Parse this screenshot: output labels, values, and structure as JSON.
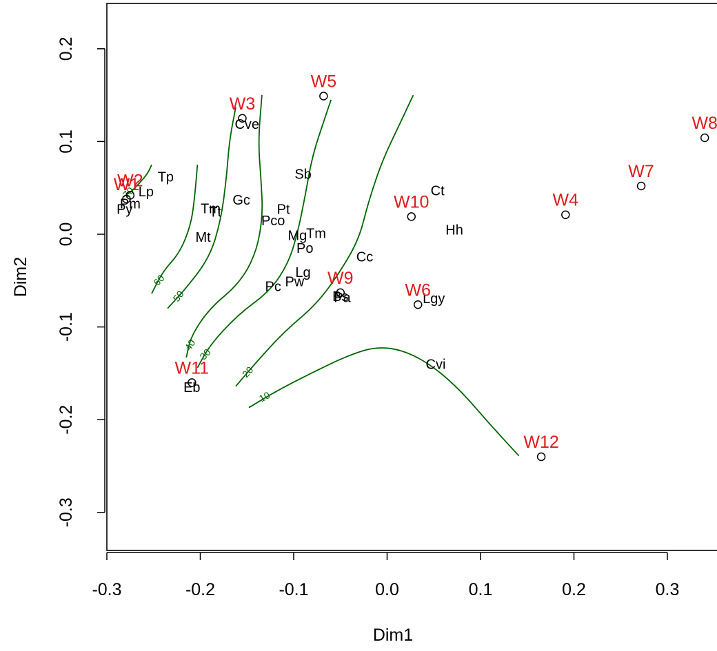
{
  "chart_data": {
    "type": "scatter",
    "title": "",
    "xlabel": "Dim1",
    "ylabel": "Dim2",
    "xlim": [
      -0.3,
      0.37
    ],
    "ylim": [
      -0.34,
      0.25
    ],
    "xticks": [
      "-0.3",
      "-0.2",
      "-0.1",
      "0.0",
      "0.1",
      "0.2",
      "0.3"
    ],
    "xtick_values": [
      -0.3,
      -0.2,
      -0.1,
      0.0,
      0.1,
      0.2,
      0.3
    ],
    "yticks": [
      "-0.3",
      "-0.2",
      "-0.1",
      "0.0",
      "0.1",
      "0.2"
    ],
    "ytick_values": [
      -0.3,
      -0.2,
      -0.1,
      0.0,
      0.1,
      0.2
    ],
    "grid": false,
    "colors": {
      "site": "#dd1c1c",
      "species": "#000000",
      "contour": "#006400",
      "axis": "#000000"
    },
    "sites": [
      {
        "label": "W1",
        "x": -0.279,
        "y": 0.038
      },
      {
        "label": "W2",
        "x": -0.275,
        "y": 0.042
      },
      {
        "label": "W3",
        "x": -0.155,
        "y": 0.125
      },
      {
        "label": "W4",
        "x": 0.191,
        "y": 0.021
      },
      {
        "label": "W5",
        "x": -0.068,
        "y": 0.149
      },
      {
        "label": "W6",
        "x": 0.033,
        "y": -0.076
      },
      {
        "label": "W7",
        "x": 0.272,
        "y": 0.052
      },
      {
        "label": "W8",
        "x": 0.34,
        "y": 0.104
      },
      {
        "label": "W9",
        "x": -0.05,
        "y": -0.063
      },
      {
        "label": "W10",
        "x": 0.026,
        "y": 0.019
      },
      {
        "label": "W11",
        "x": -0.209,
        "y": -0.16
      },
      {
        "label": "W12",
        "x": 0.165,
        "y": -0.24
      }
    ],
    "species": [
      {
        "label": "Tp",
        "x": -0.237,
        "y": 0.062
      },
      {
        "label": "Lp",
        "x": -0.258,
        "y": 0.046
      },
      {
        "label": "Pm",
        "x": -0.275,
        "y": 0.033
      },
      {
        "label": "Py",
        "x": -0.281,
        "y": 0.027
      },
      {
        "label": "Tm",
        "x": -0.189,
        "y": 0.028
      },
      {
        "label": "Tt",
        "x": -0.184,
        "y": 0.024
      },
      {
        "label": "Mt",
        "x": -0.197,
        "y": -0.003
      },
      {
        "label": "Gc",
        "x": -0.156,
        "y": 0.037
      },
      {
        "label": "Cve",
        "x": -0.15,
        "y": 0.119
      },
      {
        "label": "Sb",
        "x": -0.09,
        "y": 0.065
      },
      {
        "label": "Pt",
        "x": -0.111,
        "y": 0.027
      },
      {
        "label": "Pco",
        "x": -0.122,
        "y": 0.015
      },
      {
        "label": "Mg",
        "x": -0.096,
        "y": -0.001
      },
      {
        "label": "Tm",
        "x": -0.076,
        "y": 0.001
      },
      {
        "label": "Po",
        "x": -0.088,
        "y": -0.015
      },
      {
        "label": "Cc",
        "x": -0.024,
        "y": -0.024
      },
      {
        "label": "Lg",
        "x": -0.09,
        "y": -0.041
      },
      {
        "label": "Pw",
        "x": -0.099,
        "y": -0.051
      },
      {
        "label": "Pc",
        "x": -0.122,
        "y": -0.056
      },
      {
        "label": "Bs",
        "x": -0.05,
        "y": -0.067
      },
      {
        "label": "Pa",
        "x": -0.048,
        "y": -0.068
      },
      {
        "label": "Ct",
        "x": 0.054,
        "y": 0.047
      },
      {
        "label": "Hh",
        "x": 0.072,
        "y": 0.005
      },
      {
        "label": "Lgy",
        "x": 0.05,
        "y": -0.069
      },
      {
        "label": "Cvi",
        "x": 0.052,
        "y": -0.14
      },
      {
        "label": "Eb",
        "x": -0.209,
        "y": -0.165
      }
    ],
    "contours": [
      {
        "level": "10",
        "points": [
          [
            -0.148,
            -0.187
          ],
          [
            -0.12,
            -0.17
          ],
          [
            -0.08,
            -0.149
          ],
          [
            -0.04,
            -0.13
          ],
          [
            -0.01,
            -0.121
          ],
          [
            0.02,
            -0.126
          ],
          [
            0.05,
            -0.143
          ],
          [
            0.08,
            -0.17
          ],
          [
            0.11,
            -0.205
          ],
          [
            0.141,
            -0.239
          ]
        ]
      },
      {
        "level": "20",
        "points": [
          [
            -0.162,
            -0.164
          ],
          [
            -0.14,
            -0.138
          ],
          [
            -0.11,
            -0.105
          ],
          [
            -0.075,
            -0.075
          ],
          [
            -0.05,
            -0.04
          ],
          [
            -0.03,
            -0.005
          ],
          [
            -0.02,
            0.035
          ],
          [
            -0.005,
            0.08
          ],
          [
            0.015,
            0.122
          ],
          [
            0.028,
            0.15
          ]
        ]
      },
      {
        "level": "30",
        "points": [
          [
            -0.203,
            -0.144
          ],
          [
            -0.19,
            -0.12
          ],
          [
            -0.16,
            -0.087
          ],
          [
            -0.125,
            -0.061
          ],
          [
            -0.105,
            -0.03
          ],
          [
            -0.095,
            0.005
          ],
          [
            -0.088,
            0.04
          ],
          [
            -0.08,
            0.085
          ],
          [
            -0.066,
            0.127
          ],
          [
            -0.06,
            0.145
          ]
        ]
      },
      {
        "level": "40",
        "points": [
          [
            -0.215,
            -0.133
          ],
          [
            -0.21,
            -0.11
          ],
          [
            -0.19,
            -0.08
          ],
          [
            -0.158,
            -0.053
          ],
          [
            -0.14,
            -0.02
          ],
          [
            -0.133,
            0.02
          ],
          [
            -0.135,
            0.06
          ],
          [
            -0.138,
            0.1
          ],
          [
            -0.134,
            0.15
          ]
        ]
      },
      {
        "level": "50",
        "points": [
          [
            -0.235,
            -0.08
          ],
          [
            -0.215,
            -0.058
          ],
          [
            -0.19,
            -0.025
          ],
          [
            -0.178,
            0.015
          ],
          [
            -0.172,
            0.06
          ],
          [
            -0.169,
            0.1
          ],
          [
            -0.162,
            0.137
          ]
        ]
      },
      {
        "level": "60",
        "points": [
          [
            -0.252,
            -0.064
          ],
          [
            -0.24,
            -0.04
          ],
          [
            -0.222,
            -0.02
          ],
          [
            -0.21,
            0.01
          ],
          [
            -0.206,
            0.04
          ],
          [
            -0.203,
            0.075
          ]
        ]
      },
      {
        "level": "70",
        "points": [
          [
            -0.283,
            0.04
          ],
          [
            -0.275,
            0.045
          ],
          [
            -0.265,
            0.055
          ],
          [
            -0.256,
            0.066
          ],
          [
            -0.252,
            0.075
          ]
        ]
      }
    ]
  }
}
